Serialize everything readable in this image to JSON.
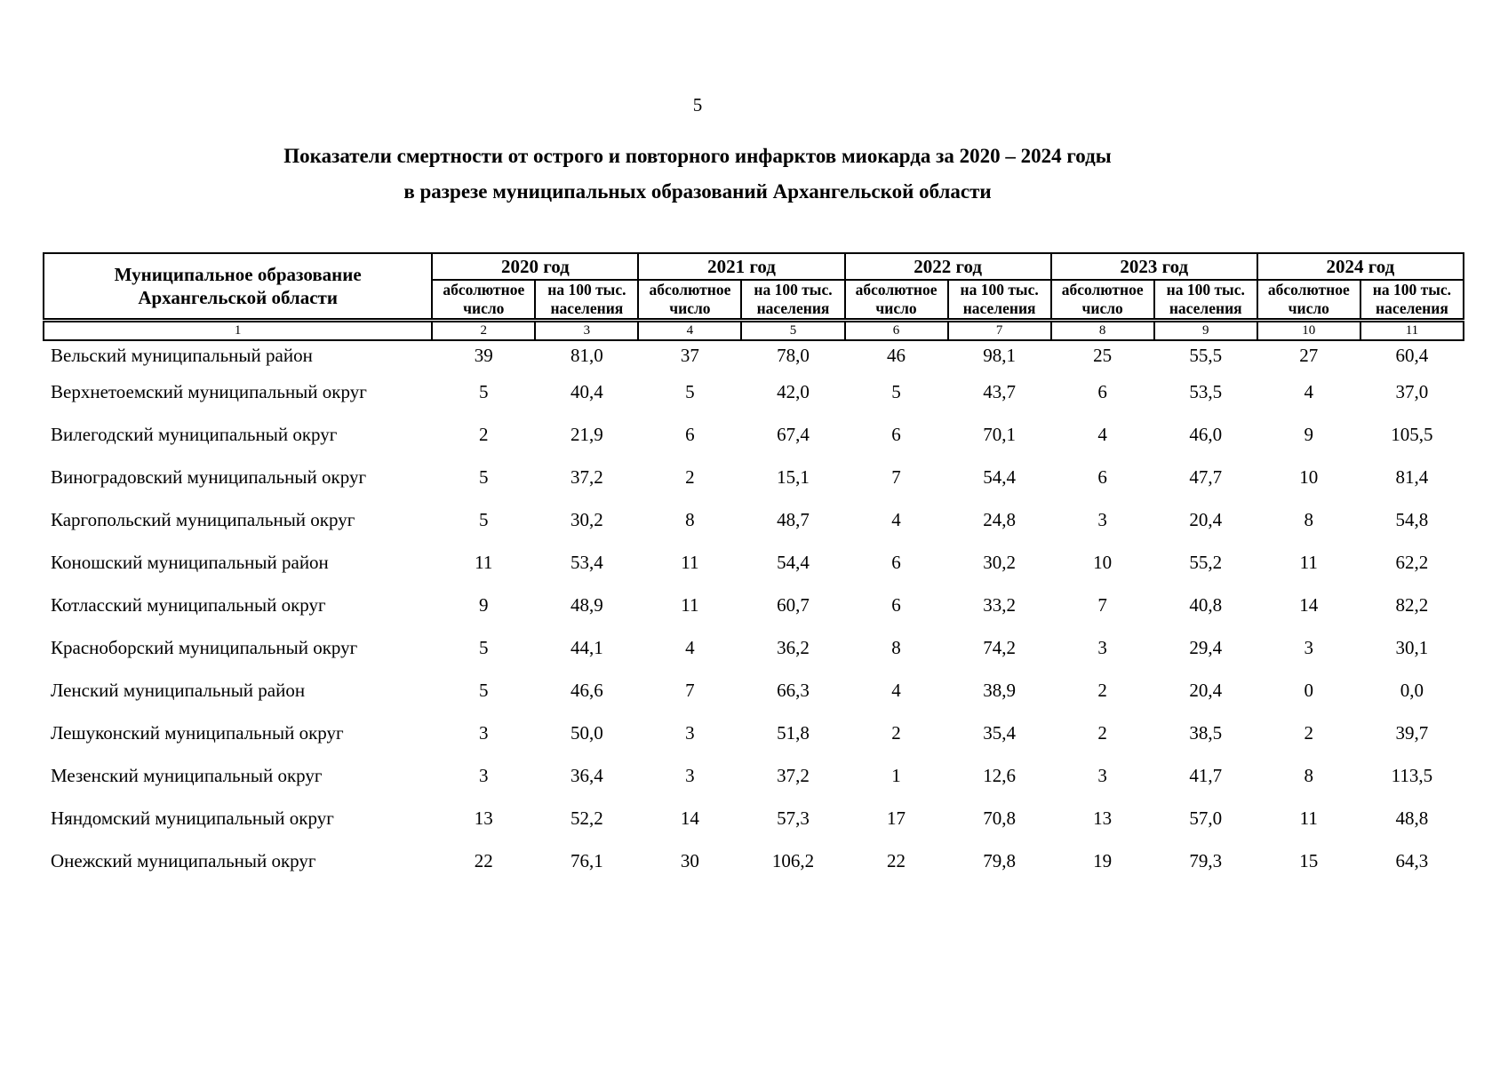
{
  "page": {
    "number": "5",
    "title_line1": "Показатели смертности от острого и повторного инфарктов миокарда за 2020 – 2024 годы",
    "title_line2": "в разрезе муниципальных образований Архангельской области"
  },
  "table": {
    "col1_header_line1": "Муниципальное образование",
    "col1_header_line2": "Архангельской области",
    "year_groups": [
      "2020 год",
      "2021 год",
      "2022 год",
      "2023 год",
      "2024 год"
    ],
    "sub_abs_line1": "абсолютное",
    "sub_abs_line2": "число",
    "sub_rate_line1": "на 100 тыс.",
    "sub_rate_line2": "населения",
    "column_numbers": [
      "1",
      "2",
      "3",
      "4",
      "5",
      "6",
      "7",
      "8",
      "9",
      "10",
      "11"
    ],
    "rows": [
      {
        "name": "Вельский муниципальный район",
        "values": [
          "39",
          "81,0",
          "37",
          "78,0",
          "46",
          "98,1",
          "25",
          "55,5",
          "27",
          "60,4"
        ]
      },
      {
        "name": "Верхнетоемский муниципальный округ",
        "values": [
          "5",
          "40,4",
          "5",
          "42,0",
          "5",
          "43,7",
          "6",
          "53,5",
          "4",
          "37,0"
        ]
      },
      {
        "name": "Вилегодский муниципальный округ",
        "values": [
          "2",
          "21,9",
          "6",
          "67,4",
          "6",
          "70,1",
          "4",
          "46,0",
          "9",
          "105,5"
        ]
      },
      {
        "name": "Виноградовский муниципальный округ",
        "values": [
          "5",
          "37,2",
          "2",
          "15,1",
          "7",
          "54,4",
          "6",
          "47,7",
          "10",
          "81,4"
        ]
      },
      {
        "name": "Каргопольский муниципальный округ",
        "values": [
          "5",
          "30,2",
          "8",
          "48,7",
          "4",
          "24,8",
          "3",
          "20,4",
          "8",
          "54,8"
        ]
      },
      {
        "name": "Коношский муниципальный район",
        "values": [
          "11",
          "53,4",
          "11",
          "54,4",
          "6",
          "30,2",
          "10",
          "55,2",
          "11",
          "62,2"
        ]
      },
      {
        "name": "Котласский муниципальный округ",
        "values": [
          "9",
          "48,9",
          "11",
          "60,7",
          "6",
          "33,2",
          "7",
          "40,8",
          "14",
          "82,2"
        ]
      },
      {
        "name": "Красноборский муниципальный округ",
        "values": [
          "5",
          "44,1",
          "4",
          "36,2",
          "8",
          "74,2",
          "3",
          "29,4",
          "3",
          "30,1"
        ]
      },
      {
        "name": "Ленский муниципальный район",
        "values": [
          "5",
          "46,6",
          "7",
          "66,3",
          "4",
          "38,9",
          "2",
          "20,4",
          "0",
          "0,0"
        ]
      },
      {
        "name": "Лешуконский муниципальный округ",
        "values": [
          "3",
          "50,0",
          "3",
          "51,8",
          "2",
          "35,4",
          "2",
          "38,5",
          "2",
          "39,7"
        ]
      },
      {
        "name": "Мезенский муниципальный округ",
        "values": [
          "3",
          "36,4",
          "3",
          "37,2",
          "1",
          "12,6",
          "3",
          "41,7",
          "8",
          "113,5"
        ]
      },
      {
        "name": "Няндомский муниципальный округ",
        "values": [
          "13",
          "52,2",
          "14",
          "57,3",
          "17",
          "70,8",
          "13",
          "57,0",
          "11",
          "48,8"
        ]
      },
      {
        "name": "Онежский муниципальный округ",
        "values": [
          "22",
          "76,1",
          "30",
          "106,2",
          "22",
          "79,8",
          "19",
          "79,3",
          "15",
          "64,3"
        ]
      }
    ]
  }
}
